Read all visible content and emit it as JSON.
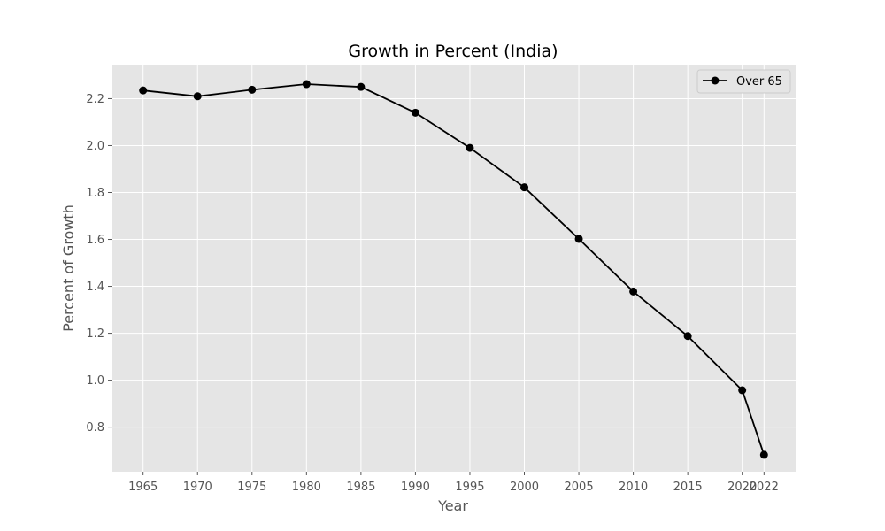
{
  "chart_data": {
    "type": "line",
    "title": "Growth in Percent (India)",
    "xlabel": "Year",
    "ylabel": "Percent of Growth",
    "categories": [
      "1965",
      "1970",
      "1975",
      "1980",
      "1985",
      "1990",
      "1995",
      "2000",
      "2005",
      "2010",
      "2015",
      "2020",
      "2022"
    ],
    "series": [
      {
        "name": "Over 65",
        "color": "#000000",
        "values": [
          2.235,
          2.21,
          2.238,
          2.262,
          2.25,
          2.14,
          1.99,
          1.822,
          1.602,
          1.378,
          1.188,
          0.957,
          0.682
        ]
      }
    ],
    "yticks": [
      0.8,
      1.0,
      1.2,
      1.4,
      1.6,
      1.8,
      2.0,
      2.2
    ],
    "ylim": [
      0.61,
      2.345
    ],
    "grid": true,
    "legend": "top-right",
    "colors": {
      "plot_background": "#e5e5e5",
      "grid": "#ffffff"
    }
  }
}
